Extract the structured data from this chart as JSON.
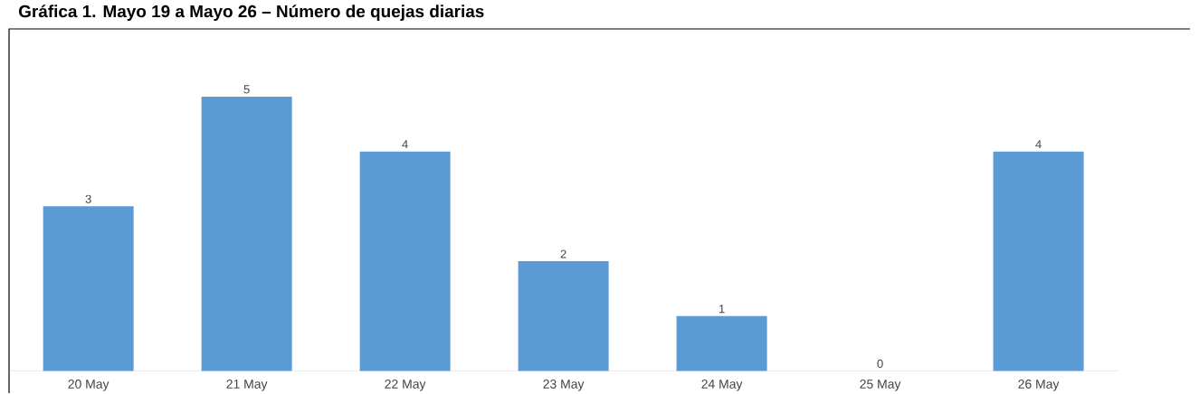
{
  "chart_data": {
    "type": "bar",
    "title": "Gráfica 1. Mayo 19 a Mayo 26 – Número de quejas diarias",
    "categories": [
      "20 May",
      "21 May",
      "22 May",
      "23 May",
      "24 May",
      "25 May",
      "26 May"
    ],
    "values": [
      3,
      5,
      4,
      2,
      1,
      0,
      4
    ],
    "color": "#5b9bd5",
    "data_labels": true
  }
}
